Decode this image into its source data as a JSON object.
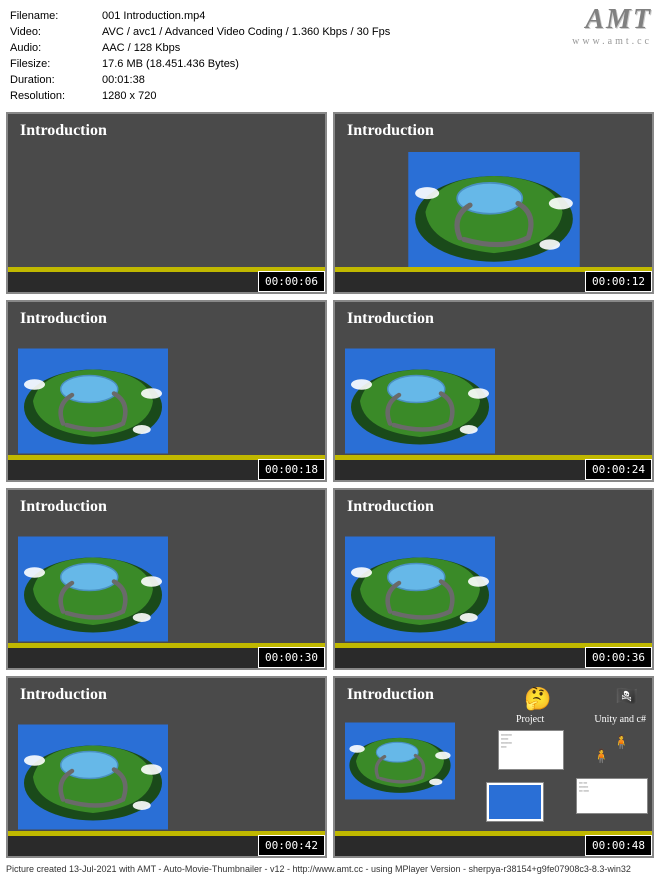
{
  "meta": {
    "filename_label": "Filename:",
    "filename": "001 Introduction.mp4",
    "video_label": "Video:",
    "video": "AVC / avc1 / Advanced Video Coding / 1.360 Kbps / 30 Fps",
    "audio_label": "Audio:",
    "audio": "AAC / 128 Kbps",
    "filesize_label": "Filesize:",
    "filesize": "17.6 MB (18.451.436 Bytes)",
    "duration_label": "Duration:",
    "duration": "00:01:38",
    "resolution_label": "Resolution:",
    "resolution": "1280 x 720"
  },
  "logo": {
    "big": "AMT",
    "small": "www.amt.cc"
  },
  "thumbs": [
    {
      "title": "Introduction",
      "ts": "00:00:06",
      "island": "none"
    },
    {
      "title": "Introduction",
      "ts": "00:00:12",
      "island": "full"
    },
    {
      "title": "Introduction",
      "ts": "00:00:18",
      "island": "left"
    },
    {
      "title": "Introduction",
      "ts": "00:00:24",
      "island": "left"
    },
    {
      "title": "Introduction",
      "ts": "00:00:30",
      "island": "left"
    },
    {
      "title": "Introduction",
      "ts": "00:00:36",
      "island": "left"
    },
    {
      "title": "Introduction",
      "ts": "00:00:42",
      "island": "left"
    },
    {
      "title": "Introduction",
      "ts": "00:00:48",
      "island": "extras"
    }
  ],
  "extras": {
    "project": "Project",
    "unity": "Unity and c#"
  },
  "colors": {
    "slide_bg": "#4a4a4a",
    "yellow": "#c0b800",
    "water": "#2a6fd6",
    "grass": "#3a8a28",
    "lake": "#66b8e8",
    "road": "#6a6a6a"
  },
  "footer": "Picture created 13-Jul-2021 with AMT - Auto-Movie-Thumbnailer - v12 - http://www.amt.cc - using MPlayer Version - sherpya-r38154+g9fe07908c3-8.3-win32"
}
